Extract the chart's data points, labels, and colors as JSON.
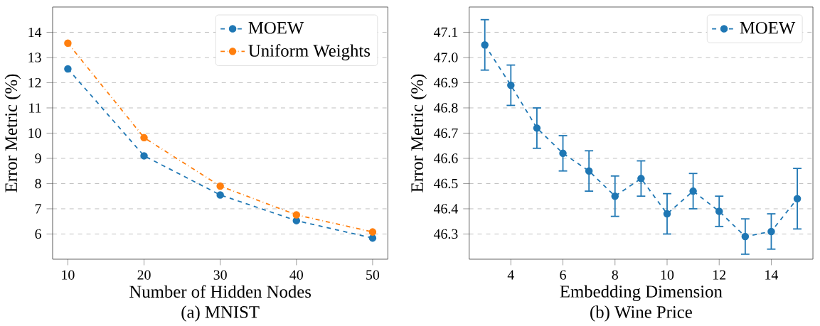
{
  "chart_data": [
    {
      "type": "line",
      "xlabel": "Number of Hidden Nodes",
      "ylabel": "Error Metric (%)",
      "annotations": [
        "(a) MNIST"
      ],
      "x": [
        10,
        20,
        30,
        40,
        50
      ],
      "series": [
        {
          "name": "MOEW",
          "color": "#1f77b4",
          "line_style": "dashed",
          "values": [
            12.55,
            9.1,
            7.55,
            6.53,
            5.84
          ]
        },
        {
          "name": "Uniform Weights",
          "color": "#ff7f0e",
          "line_style": "dashdot",
          "values": [
            13.57,
            9.82,
            7.9,
            6.76,
            6.08
          ]
        }
      ],
      "xlim": [
        8,
        52
      ],
      "ylim": [
        5,
        15
      ],
      "xticks": [
        10,
        20,
        30,
        40,
        50
      ],
      "yticks": [
        6,
        7,
        8,
        9,
        10,
        11,
        12,
        13,
        14
      ],
      "grid": "y",
      "legend": "top right",
      "marker": "circle"
    },
    {
      "type": "line",
      "xlabel": "Embedding Dimension",
      "ylabel": "Error Metric (%)",
      "annotations": [
        "(b) Wine Price"
      ],
      "x": [
        3,
        4,
        5,
        6,
        7,
        8,
        9,
        10,
        11,
        12,
        13,
        14,
        15
      ],
      "series": [
        {
          "name": "MOEW",
          "color": "#1f77b4",
          "line_style": "dashed",
          "values": [
            47.05,
            46.89,
            46.72,
            46.62,
            46.55,
            46.45,
            46.52,
            46.38,
            46.47,
            46.39,
            46.29,
            46.31,
            46.44
          ],
          "errors": [
            0.1,
            0.08,
            0.08,
            0.07,
            0.08,
            0.08,
            0.07,
            0.08,
            0.07,
            0.06,
            0.07,
            0.07,
            0.12
          ]
        }
      ],
      "xlim": [
        2.4,
        15.6
      ],
      "ylim": [
        46.2,
        47.2
      ],
      "xticks": [
        4,
        6,
        8,
        10,
        12,
        14
      ],
      "yticks": [
        46.3,
        46.4,
        46.5,
        46.6,
        46.7,
        46.8,
        46.9,
        {
          "value": 47.0,
          "label": "47.0"
        },
        47.1
      ],
      "grid": "y",
      "legend": "top right",
      "marker": "circle"
    }
  ]
}
